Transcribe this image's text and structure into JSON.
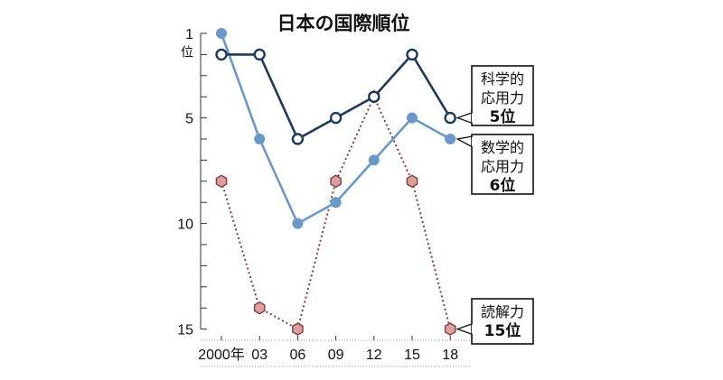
{
  "chart_data": {
    "type": "line",
    "title": "日本の国際順位",
    "x_categories": [
      "2000年",
      "03",
      "06",
      "09",
      "12",
      "15",
      "18"
    ],
    "y_ticks": [
      "1",
      "5",
      "10",
      "15"
    ],
    "y_unit": "位",
    "ylim": [
      1,
      15
    ],
    "y_reversed": true,
    "series": [
      {
        "name": "科学的応用力",
        "label_lines": [
          "科学的",
          "応用力"
        ],
        "rank_label": "5位",
        "values": [
          2,
          2,
          6,
          5,
          4,
          2,
          5
        ],
        "color": "#1d3a5c",
        "marker": "open-circle",
        "line": "solid"
      },
      {
        "name": "数学的応用力",
        "label_lines": [
          "数学的",
          "応用力"
        ],
        "rank_label": "6位",
        "values": [
          1,
          6,
          10,
          9,
          7,
          5,
          6
        ],
        "color": "#6a98c8",
        "marker": "filled-circle",
        "line": "solid"
      },
      {
        "name": "読解力",
        "label_lines": [
          "読解力"
        ],
        "rank_label": "15位",
        "values": [
          8,
          14,
          15,
          8,
          4,
          8,
          15
        ],
        "color": "#8b3a3a",
        "fill": "#d9a0a0",
        "marker": "hexagon",
        "line": "dotted"
      }
    ]
  }
}
